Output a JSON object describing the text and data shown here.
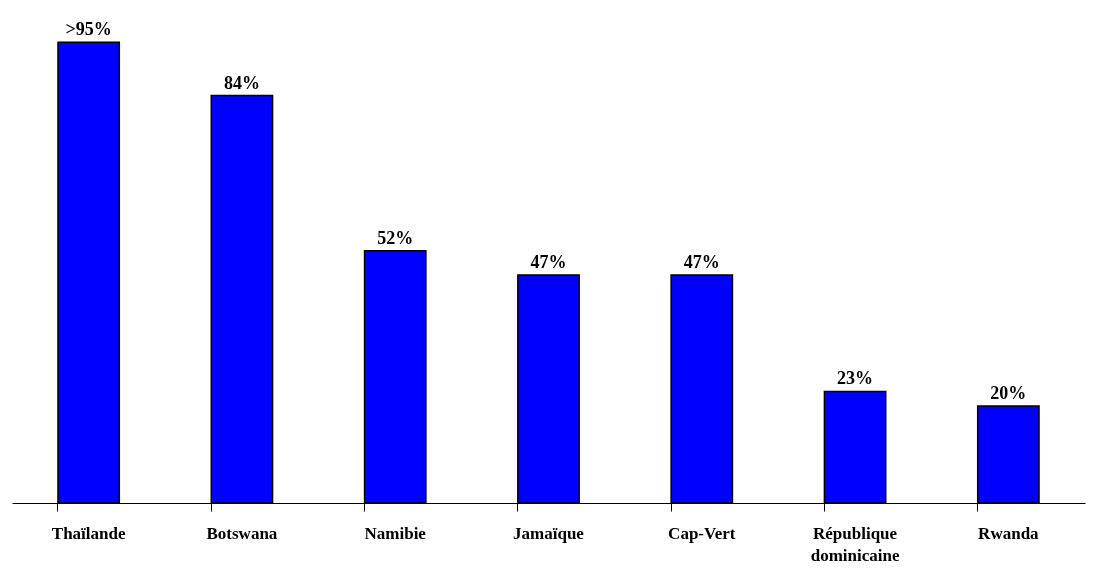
{
  "chart_data": {
    "type": "bar",
    "categories": [
      "Thaïlande",
      "Botswana",
      "Namibie",
      "Jamaïque",
      "Cap-Vert",
      "République dominicaine",
      "Rwanda"
    ],
    "values": [
      95,
      84,
      52,
      47,
      47,
      23,
      20
    ],
    "value_labels": [
      ">95%",
      "84%",
      "52%",
      "47%",
      "47%",
      "23%",
      "20%"
    ],
    "color": "#0000ff",
    "grid": false
  }
}
